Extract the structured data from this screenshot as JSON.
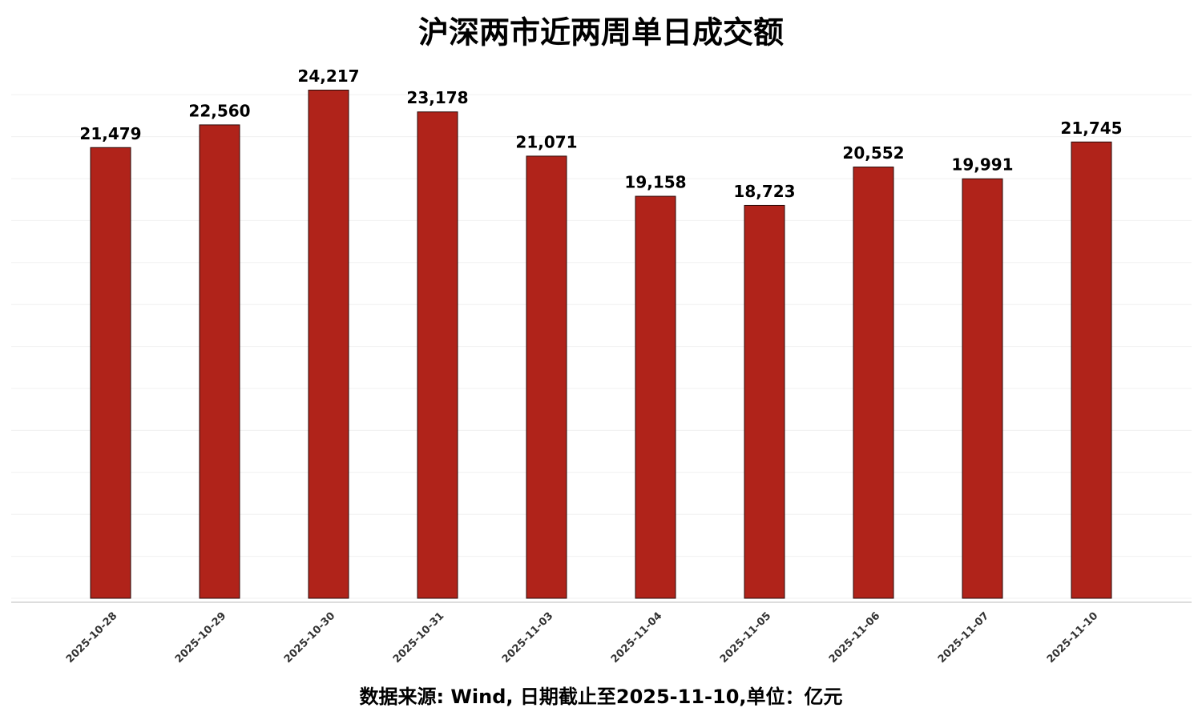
{
  "chart_data": {
    "type": "bar",
    "title": "沪深两市近两周单日成交额",
    "caption": "数据来源: Wind, 日期截止至2025-11-10,单位：亿元",
    "categories": [
      "2025-10-28",
      "2025-10-29",
      "2025-10-30",
      "2025-10-31",
      "2025-11-03",
      "2025-11-04",
      "2025-11-05",
      "2025-11-06",
      "2025-11-07",
      "2025-11-10"
    ],
    "values": [
      21479,
      22560,
      24217,
      23178,
      21071,
      19158,
      18723,
      20552,
      19991,
      21745
    ],
    "value_labels": [
      "21,479",
      "22,560",
      "24,217",
      "23,178",
      "21,071",
      "19,158",
      "18,723",
      "20,552",
      "19,991",
      "21,745"
    ],
    "color": "#b0231a",
    "ylim": [
      0,
      25000
    ],
    "yticks": [
      0,
      2000,
      4000,
      6000,
      8000,
      10000,
      12000,
      14000,
      16000,
      18000,
      20000,
      22000,
      24000
    ],
    "grid": true
  }
}
